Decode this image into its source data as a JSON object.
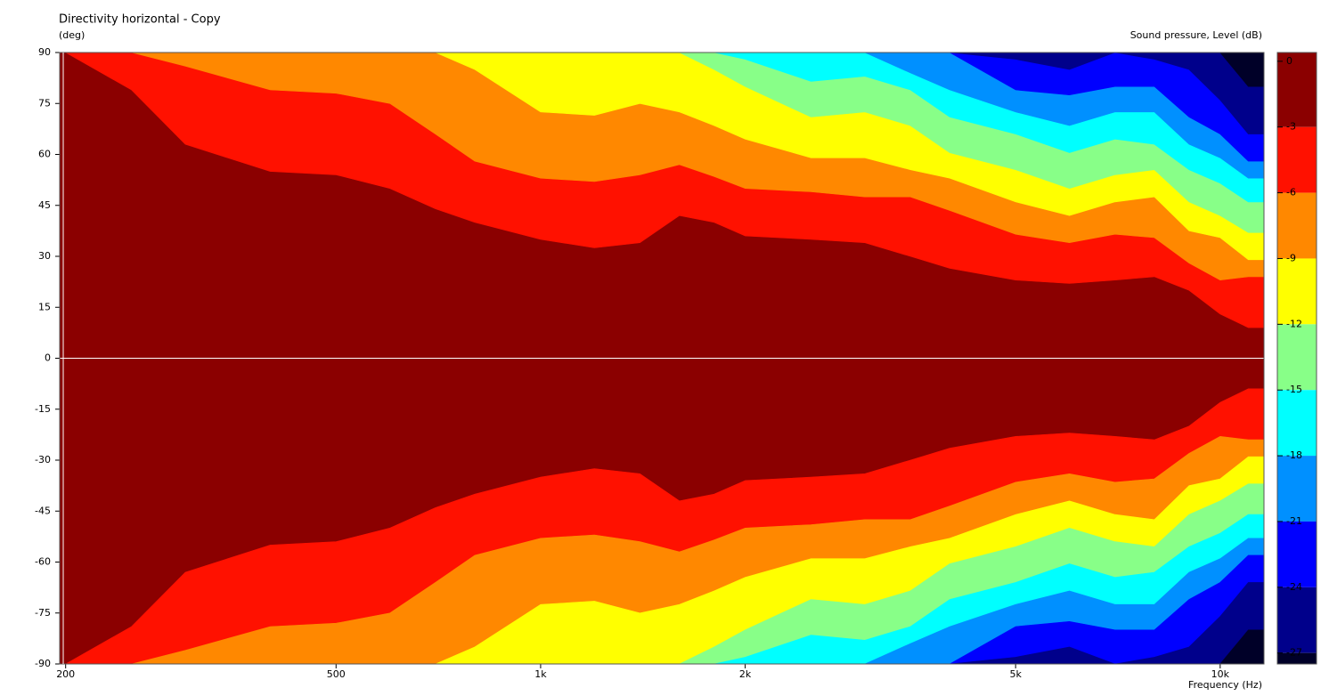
{
  "chart_data": {
    "type": "contour",
    "title": "Directivity horizontal - Copy",
    "y_label": "(deg)",
    "x_label": "Frequency (Hz)",
    "colorbar_label": "Sound pressure, Level (dB)",
    "x_scale": "log",
    "xlim": [
      196,
      11600
    ],
    "xticks": [
      200,
      500,
      {
        "value": 1000,
        "label": "1k"
      },
      {
        "value": 2000,
        "label": "2k"
      },
      {
        "value": 5000,
        "label": "5k"
      },
      {
        "value": 10000,
        "label": "10k"
      }
    ],
    "ylim": [
      -90,
      90
    ],
    "yticks": [
      90,
      75,
      60,
      45,
      30,
      15,
      0,
      -15,
      -30,
      -45,
      -60,
      -75,
      -90
    ],
    "symmetric": true,
    "colorbar": {
      "lim": [
        0.4,
        -27.5
      ],
      "ticks": [
        0,
        -3,
        -6,
        -9,
        -12,
        -15,
        -18,
        -21,
        -24,
        -27
      ],
      "colors": [
        "#8b0000",
        "#ff1100",
        "#ff8800",
        "#ffff00",
        "#88ff88",
        "#00ffff",
        "#0090ff",
        "#0000ff",
        "#00008b",
        "#000028"
      ]
    },
    "x": [
      200,
      250,
      300,
      400,
      500,
      600,
      700,
      800,
      1000,
      1200,
      1400,
      1600,
      1800,
      2000,
      2500,
      3000,
      3500,
      4000,
      5000,
      6000,
      7000,
      8000,
      9000,
      10000,
      11000
    ],
    "series": [
      {
        "values": [
          90,
          79,
          63,
          55,
          54,
          50,
          44,
          40,
          35,
          32.5,
          34,
          42,
          40,
          36,
          35,
          34,
          30,
          26.5,
          23,
          22,
          23,
          24,
          20,
          13,
          9
        ]
      },
      {
        "values": [
          90,
          90,
          86,
          79,
          78,
          75,
          66,
          58,
          53,
          52,
          54,
          57,
          53.5,
          50,
          49,
          47.5,
          47.5,
          43.5,
          36.5,
          34,
          36.5,
          35.5,
          28,
          23,
          24
        ]
      },
      {
        "values": [
          90,
          90,
          90,
          90,
          90,
          90,
          90,
          85,
          72.5,
          71.5,
          75,
          72.5,
          68.5,
          64.5,
          59,
          59,
          55.5,
          53,
          46,
          42,
          46,
          47.5,
          37.5,
          35.5,
          29
        ]
      },
      {
        "values": [
          90,
          90,
          90,
          90,
          90,
          90,
          90,
          90,
          90,
          90,
          90,
          90,
          85,
          80,
          71,
          72.5,
          68.5,
          60.5,
          55.5,
          50,
          54,
          55.5,
          46,
          42,
          37
        ]
      },
      {
        "values": [
          90,
          90,
          90,
          90,
          90,
          90,
          90,
          90,
          90,
          90,
          90,
          90,
          90,
          88,
          81.5,
          83,
          79,
          71,
          66,
          60.5,
          64.5,
          63,
          55.5,
          51.5,
          46
        ]
      },
      {
        "values": [
          90,
          90,
          90,
          90,
          90,
          90,
          90,
          90,
          90,
          90,
          90,
          90,
          90,
          90,
          90,
          90,
          84,
          79,
          72.5,
          68.5,
          72.5,
          72.5,
          63,
          59,
          53
        ]
      },
      {
        "values": [
          90,
          90,
          90,
          90,
          90,
          90,
          90,
          90,
          90,
          90,
          90,
          90,
          90,
          90,
          90,
          90,
          90,
          90,
          79,
          77.5,
          80,
          80,
          71,
          66,
          58
        ]
      },
      {
        "values": [
          90,
          90,
          90,
          90,
          90,
          90,
          90,
          90,
          90,
          90,
          90,
          90,
          90,
          90,
          90,
          90,
          90,
          90,
          88,
          85,
          90,
          88,
          85,
          76,
          66
        ]
      },
      {
        "values": [
          90,
          90,
          90,
          90,
          90,
          90,
          90,
          90,
          90,
          90,
          90,
          90,
          90,
          90,
          90,
          90,
          90,
          90,
          90,
          90,
          90,
          90,
          90,
          90,
          80
        ]
      }
    ]
  }
}
